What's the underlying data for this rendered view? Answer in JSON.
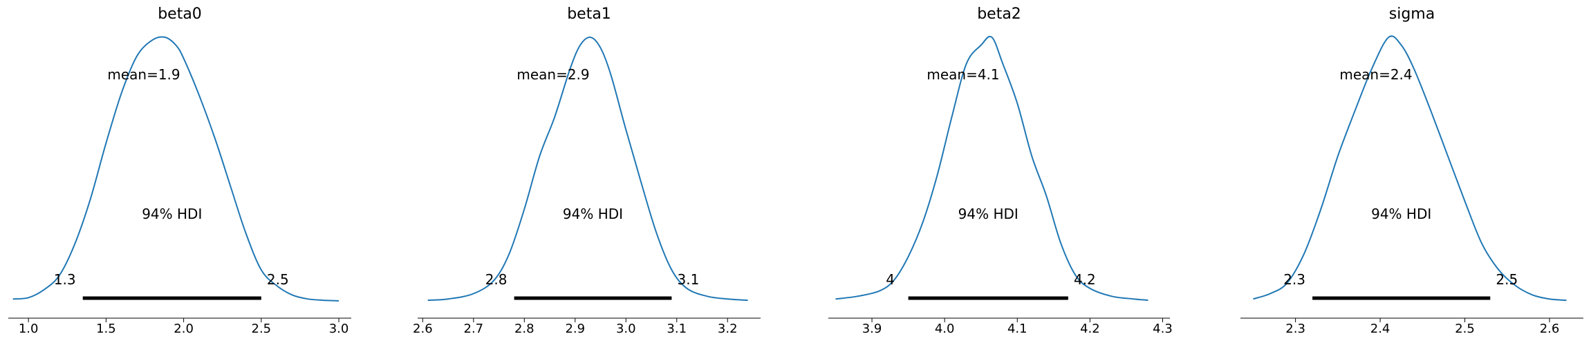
{
  "chart_data": [
    {
      "type": "area",
      "title": "beta0",
      "xlim": [
        0.87,
        3.08
      ],
      "ticks": [
        1.0,
        1.5,
        2.0,
        2.5,
        3.0
      ],
      "tick_labels": [
        "1.0",
        "1.5",
        "2.0",
        "2.5",
        "3.0"
      ],
      "density_x": [
        0.9,
        1.0,
        1.1,
        1.2,
        1.3,
        1.4,
        1.5,
        1.6,
        1.7,
        1.8,
        1.88,
        1.95,
        2.0,
        2.1,
        2.2,
        2.3,
        2.4,
        2.5,
        2.6,
        2.7,
        2.8,
        2.9,
        3.0
      ],
      "density_y": [
        0.01,
        0.015,
        0.045,
        0.1,
        0.22,
        0.39,
        0.6,
        0.79,
        0.93,
        0.99,
        1.0,
        0.97,
        0.92,
        0.78,
        0.62,
        0.44,
        0.26,
        0.12,
        0.06,
        0.025,
        0.01,
        0.005,
        0.003
      ],
      "mean_label": "mean=1.9",
      "hdi_label": "94% HDI",
      "hdi": [
        1.35,
        2.5
      ],
      "hdi_low_label": "1.3",
      "hdi_high_label": "2.5",
      "line_color": "#1f77b4"
    },
    {
      "type": "area",
      "title": "beta1",
      "xlim": [
        2.59,
        3.265
      ],
      "ticks": [
        2.6,
        2.7,
        2.8,
        2.9,
        3.0,
        3.1,
        3.2
      ],
      "tick_labels": [
        "2.6",
        "2.7",
        "2.8",
        "2.9",
        "3.0",
        "3.1",
        "3.2"
      ],
      "density_x": [
        2.61,
        2.65,
        2.7,
        2.74,
        2.77,
        2.8,
        2.83,
        2.86,
        2.89,
        2.91,
        2.93,
        2.95,
        2.97,
        3.0,
        3.03,
        3.06,
        3.09,
        3.12,
        3.16,
        3.2,
        3.24
      ],
      "density_y": [
        0.005,
        0.01,
        0.03,
        0.08,
        0.18,
        0.35,
        0.55,
        0.7,
        0.88,
        0.97,
        1.0,
        0.96,
        0.86,
        0.65,
        0.45,
        0.26,
        0.12,
        0.05,
        0.02,
        0.01,
        0.005
      ],
      "mean_label": "mean=2.9",
      "hdi_label": "94% HDI",
      "hdi": [
        2.78,
        3.09
      ],
      "hdi_low_label": "2.8",
      "hdi_high_label": "3.1",
      "line_color": "#1f77b4"
    },
    {
      "type": "area",
      "title": "beta2",
      "xlim": [
        3.84,
        4.31
      ],
      "ticks": [
        3.9,
        4.0,
        4.1,
        4.2,
        4.3
      ],
      "tick_labels": [
        "3.9",
        "4.0",
        "4.1",
        "4.2",
        "4.3"
      ],
      "density_x": [
        3.85,
        3.88,
        3.91,
        3.93,
        3.95,
        3.97,
        3.99,
        4.01,
        4.03,
        4.05,
        4.065,
        4.08,
        4.1,
        4.12,
        4.14,
        4.16,
        4.18,
        4.2,
        4.23,
        4.26,
        4.28
      ],
      "density_y": [
        0.01,
        0.02,
        0.04,
        0.08,
        0.17,
        0.3,
        0.48,
        0.7,
        0.9,
        0.97,
        1.0,
        0.9,
        0.75,
        0.55,
        0.4,
        0.22,
        0.1,
        0.05,
        0.02,
        0.01,
        0.005
      ],
      "mean_label": "mean=4.1",
      "hdi_label": "94% HDI",
      "hdi": [
        3.95,
        4.17
      ],
      "hdi_low_label": "4",
      "hdi_high_label": "4.2",
      "line_color": "#1f77b4"
    },
    {
      "type": "area",
      "title": "sigma",
      "xlim": [
        2.235,
        2.64
      ],
      "ticks": [
        2.3,
        2.4,
        2.5,
        2.6
      ],
      "tick_labels": [
        "2.3",
        "2.4",
        "2.5",
        "2.6"
      ],
      "density_x": [
        2.25,
        2.27,
        2.29,
        2.31,
        2.33,
        2.35,
        2.37,
        2.39,
        2.41,
        2.425,
        2.44,
        2.46,
        2.48,
        2.5,
        2.52,
        2.54,
        2.56,
        2.58,
        2.6,
        2.62
      ],
      "density_y": [
        0.01,
        0.03,
        0.07,
        0.18,
        0.35,
        0.55,
        0.72,
        0.88,
        1.0,
        0.97,
        0.88,
        0.72,
        0.55,
        0.38,
        0.22,
        0.12,
        0.06,
        0.025,
        0.01,
        0.005
      ],
      "mean_label": "mean=2.4",
      "hdi_label": "94% HDI",
      "hdi": [
        2.32,
        2.53
      ],
      "hdi_low_label": "2.3",
      "hdi_high_label": "2.5",
      "line_color": "#1f77b4"
    }
  ]
}
